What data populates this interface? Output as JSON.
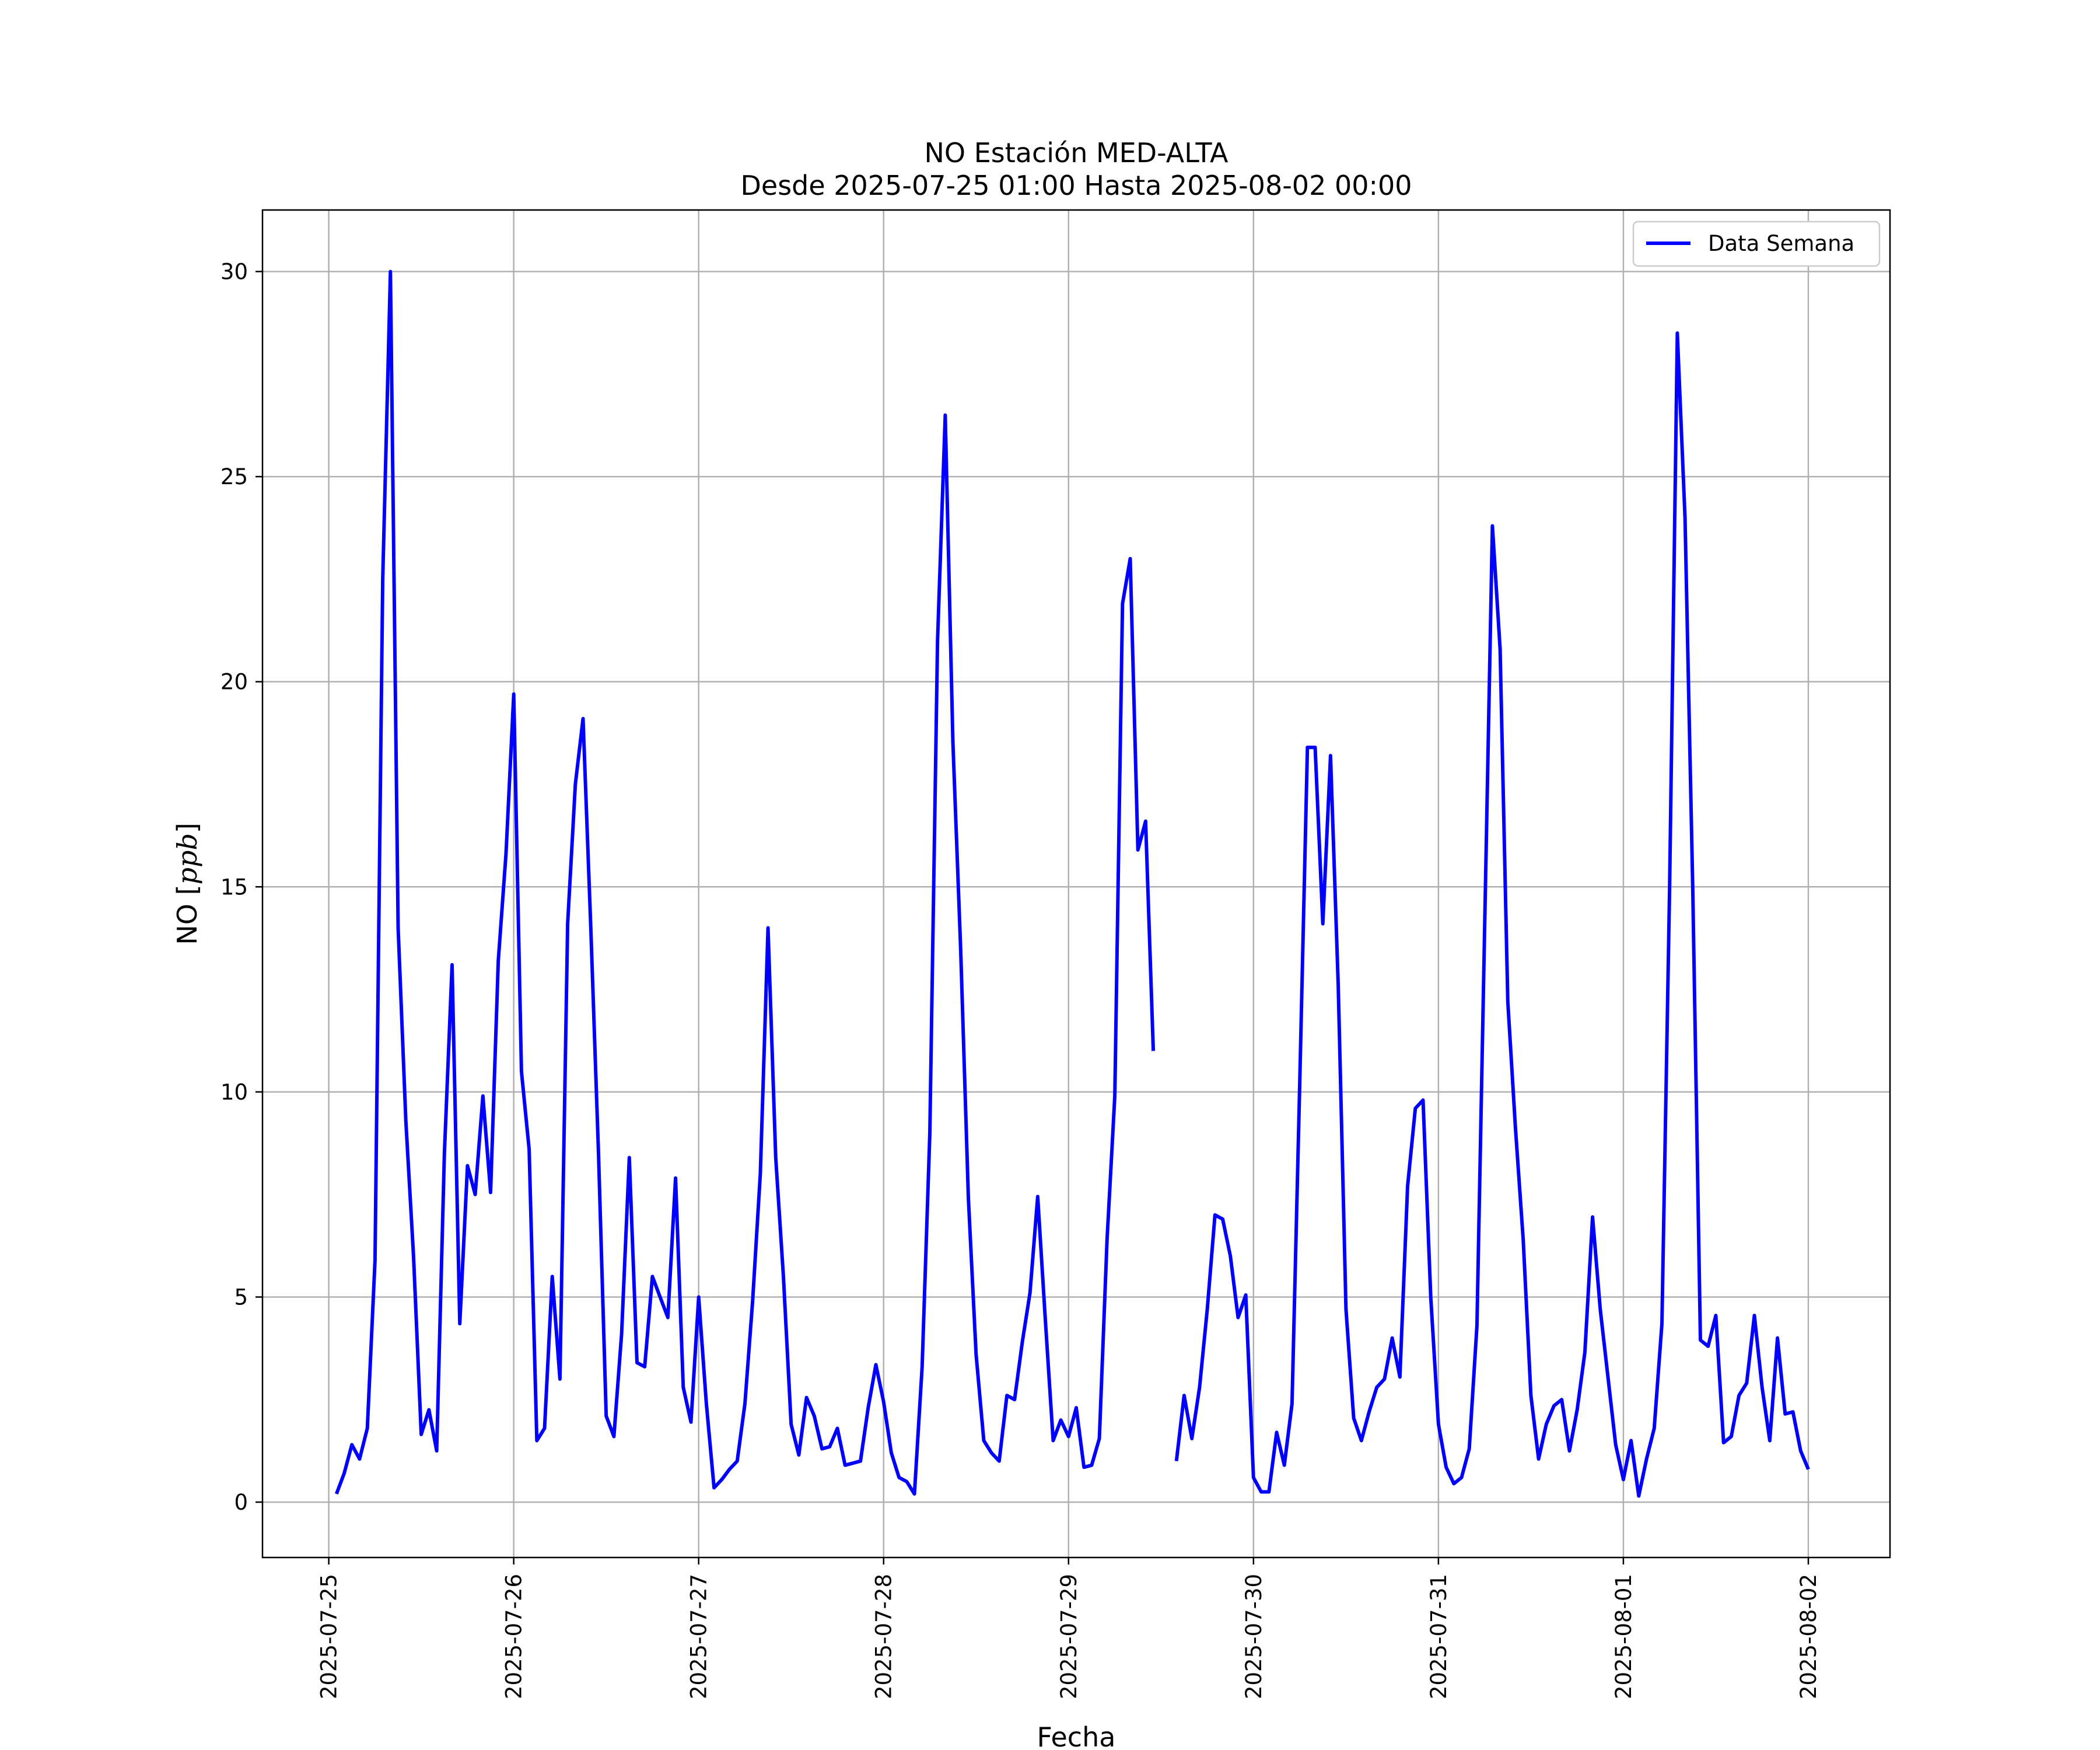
{
  "chart_data": {
    "type": "line",
    "title": "NO Estación MED-ALTA",
    "subtitle": "Desde 2025-07-25 01:00 Hasta 2025-08-02 00:00",
    "xlabel": "Fecha",
    "ylabel_prefix": "NO [",
    "ylabel_unit": "ppb",
    "ylabel_suffix": "]",
    "x_ticks": [
      "2025-07-25",
      "2025-07-26",
      "2025-07-27",
      "2025-07-28",
      "2025-07-29",
      "2025-07-30",
      "2025-07-31",
      "2025-08-01",
      "2025-08-02"
    ],
    "y_ticks": [
      0,
      5,
      10,
      15,
      20,
      25,
      30
    ],
    "xlim": [
      "2025-07-24 15:24",
      "2025-08-02 10:36"
    ],
    "ylim": [
      -1.35,
      31.5
    ],
    "grid": true,
    "legend_position": "top-right",
    "colors": {
      "series": "#0000ff",
      "grid": "#b0b0b0",
      "axes": "#000000"
    },
    "series": [
      {
        "name": "Data Semana",
        "start": "2025-07-25 01:00",
        "step_hours": 1,
        "values": [
          0.2,
          0.7,
          1.4,
          1.05,
          1.8,
          5.9,
          22.5,
          30.0,
          14.0,
          9.3,
          6.0,
          1.65,
          2.25,
          1.25,
          8.5,
          13.1,
          4.35,
          8.2,
          7.5,
          9.9,
          7.55,
          13.2,
          15.8,
          19.7,
          10.5,
          8.6,
          1.5,
          1.8,
          5.5,
          3.0,
          14.1,
          17.5,
          19.1,
          14.0,
          8.5,
          2.1,
          1.6,
          4.1,
          8.4,
          3.4,
          3.3,
          5.5,
          5.0,
          4.5,
          7.9,
          2.8,
          1.95,
          5.0,
          2.4,
          0.35,
          0.55,
          0.8,
          1.0,
          2.4,
          4.9,
          8.0,
          14.0,
          8.4,
          5.5,
          1.9,
          1.15,
          2.55,
          2.1,
          1.3,
          1.35,
          1.8,
          0.9,
          0.95,
          1.0,
          2.3,
          3.35,
          2.45,
          1.2,
          0.6,
          0.5,
          0.2,
          3.3,
          9.0,
          21.0,
          26.5,
          18.5,
          13.5,
          7.4,
          3.6,
          1.5,
          1.2,
          1.0,
          2.6,
          2.5,
          3.9,
          5.1,
          7.45,
          4.4,
          1.5,
          2.0,
          1.6,
          2.3,
          0.85,
          0.9,
          1.55,
          6.4,
          9.9,
          21.9,
          23.0,
          15.9,
          16.6,
          11.0,
          null,
          null,
          1.0,
          2.6,
          1.55,
          2.8,
          4.7,
          7.0,
          6.9,
          6.0,
          4.5,
          5.05,
          0.6,
          0.25,
          0.25,
          1.7,
          0.9,
          2.4,
          10.2,
          18.4,
          18.4,
          14.1,
          18.2,
          12.6,
          4.7,
          2.05,
          1.5,
          2.2,
          2.8,
          3.0,
          4.0,
          3.05,
          7.7,
          9.6,
          9.8,
          5.0,
          1.9,
          0.85,
          0.45,
          0.6,
          1.3,
          4.3,
          14.0,
          23.8,
          20.8,
          12.2,
          9.1,
          6.4,
          2.6,
          1.05,
          1.9,
          2.35,
          2.5,
          1.25,
          2.25,
          3.65,
          6.95,
          4.7,
          3.05,
          1.4,
          0.55,
          1.5,
          0.15,
          1.05,
          1.8,
          4.35,
          15.0,
          28.5,
          24.0,
          15.0,
          3.95,
          3.8,
          4.55,
          1.45,
          1.6,
          2.6,
          2.9,
          4.55,
          2.8,
          1.5,
          4.0,
          2.15,
          2.2,
          1.25,
          0.8
        ]
      }
    ]
  }
}
